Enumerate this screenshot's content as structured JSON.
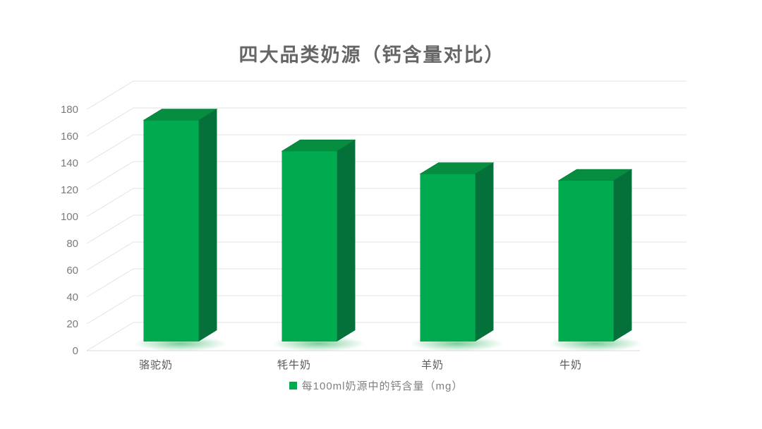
{
  "title": "四大品类奶源（钙含量对比）",
  "legend": {
    "label": "每100ml奶源中的钙含量（mg）",
    "marker_color": "#00AB50"
  },
  "chart_data": {
    "type": "bar",
    "style": "3d-column",
    "title": "四大品类奶源（钙含量对比）",
    "categories": [
      "骆驼奶",
      "牦牛奶",
      "羊奶",
      "牛奶"
    ],
    "series": [
      {
        "name": "每100ml奶源中的钙含量（mg）",
        "values": [
          165,
          142,
          125,
          120
        ]
      }
    ],
    "xlabel": "",
    "ylabel": "",
    "ylim": [
      0,
      180
    ],
    "ytick_step": 20,
    "yticks": [
      0,
      20,
      40,
      60,
      80,
      100,
      120,
      140,
      160,
      180
    ],
    "grid": true,
    "legend_position": "bottom",
    "colors": {
      "bar_front": "#00AB50",
      "bar_top": "#078D40",
      "bar_side": "#04703A",
      "glow": "#4DBE77",
      "gridline": "#E2E2E2",
      "axis_line": "#D9D9D9",
      "axis_text": "#7A7A7A",
      "category_text": "#595959",
      "title_text": "#666666"
    }
  }
}
